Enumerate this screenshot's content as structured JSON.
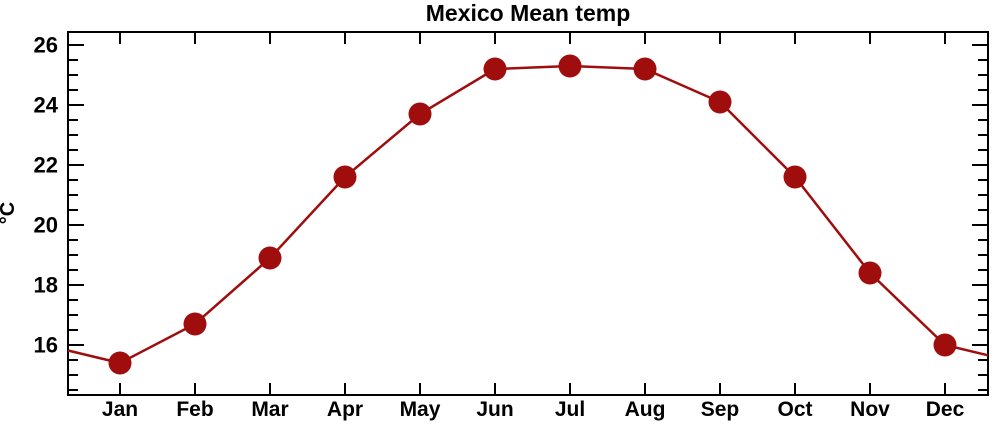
{
  "page": {
    "background": "#FFFFFF"
  },
  "chart_data": {
    "type": "line",
    "title": "Mexico Mean temp",
    "ylabel": "°C",
    "xlabel": "",
    "categories": [
      "Jan",
      "Feb",
      "Mar",
      "Apr",
      "May",
      "Jun",
      "Jul",
      "Aug",
      "Sep",
      "Oct",
      "Nov",
      "Dec"
    ],
    "values": [
      15.4,
      16.7,
      18.9,
      21.6,
      23.7,
      25.2,
      25.3,
      25.2,
      24.1,
      21.6,
      18.4,
      16.0
    ],
    "ylim": [
      14.33,
      26.43
    ],
    "y_ticks_major": [
      16,
      18,
      20,
      22,
      24,
      26
    ],
    "y_minor_tick_step": 0.5,
    "grid": false,
    "legend": false,
    "marker": "circle",
    "line_color": "#A00D0D",
    "marker_color": "#A00D0D",
    "axis_color": "#000000",
    "line_extends_to_plot_edges": true
  }
}
